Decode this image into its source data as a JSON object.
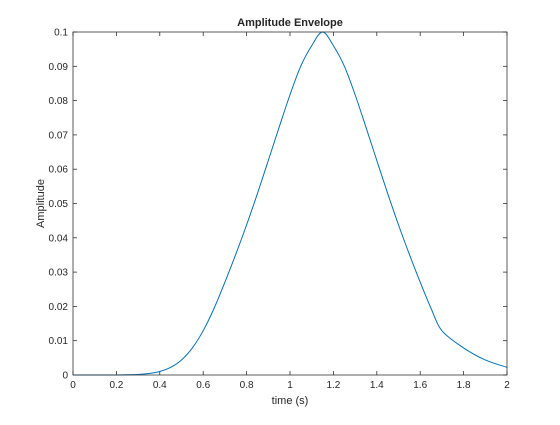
{
  "chart_data": {
    "type": "line",
    "title": "Amplitude Envelope",
    "xlabel": "time (s)",
    "ylabel": "Amplitude",
    "xlim": [
      0,
      2
    ],
    "ylim": [
      0,
      0.1
    ],
    "x_ticks": [
      0,
      0.2,
      0.4,
      0.6,
      0.8,
      1,
      1.2,
      1.4,
      1.6,
      1.8,
      2
    ],
    "x_tick_labels": [
      "0",
      "0.2",
      "0.4",
      "0.6",
      "0.8",
      "1",
      "1.2",
      "1.4",
      "1.6",
      "1.8",
      "2"
    ],
    "y_ticks": [
      0,
      0.01,
      0.02,
      0.03,
      0.04,
      0.05,
      0.06,
      0.07,
      0.08,
      0.09,
      0.1
    ],
    "y_tick_labels": [
      "0",
      "0.01",
      "0.02",
      "0.03",
      "0.04",
      "0.05",
      "0.06",
      "0.07",
      "0.08",
      "0.09",
      "0.1"
    ],
    "grid": false,
    "legend": "none",
    "series": [
      {
        "color": "#0072BD",
        "x": [
          0,
          0.1,
          0.2,
          0.3,
          0.35,
          0.4,
          0.45,
          0.5,
          0.55,
          0.6,
          0.65,
          0.7,
          0.75,
          0.8,
          0.85,
          0.9,
          0.95,
          1,
          1.05,
          1.1,
          1.15,
          1.2,
          1.25,
          1.3,
          1.35,
          1.4,
          1.45,
          1.5,
          1.55,
          1.6,
          1.65,
          1.7,
          1.8,
          1.9,
          2
        ],
        "y": [
          0,
          0,
          1e-05,
          0.00016,
          0.00043,
          0.00102,
          0.00223,
          0.00439,
          0.0079,
          0.01292,
          0.01942,
          0.02706,
          0.03519,
          0.04377,
          0.05293,
          0.06254,
          0.07225,
          0.08171,
          0.0901,
          0.096,
          0.1,
          0.096,
          0.0901,
          0.08171,
          0.07225,
          0.06254,
          0.05293,
          0.04377,
          0.03519,
          0.02706,
          0.01942,
          0.01292,
          0.0079,
          0.00439,
          0.00223
        ]
      }
    ]
  }
}
